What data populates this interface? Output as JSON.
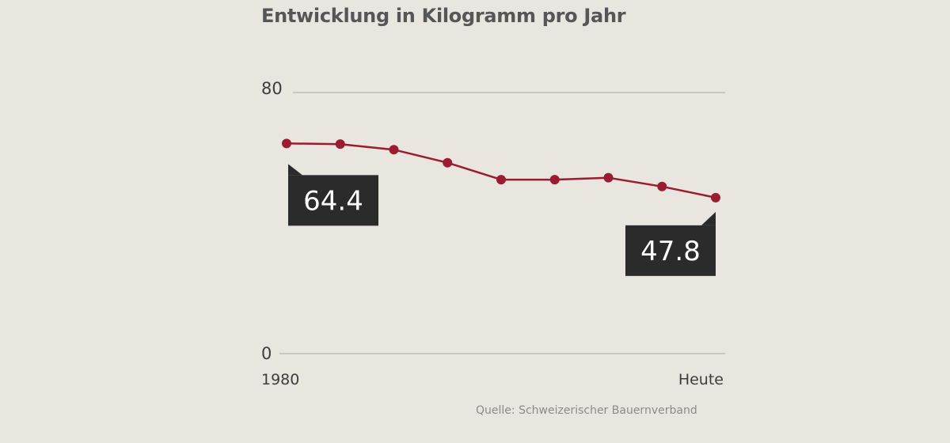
{
  "header": {
    "title": "Entwicklung in Kilogramm pro Jahr"
  },
  "footer": {
    "source": "Quelle: Schweizerischer Bauernverband"
  },
  "colors": {
    "background": "#e9e5df",
    "line": "#9b1b30",
    "grid": "#bfbbb5",
    "callout": "#2b2b2b"
  },
  "chart_data": {
    "type": "line",
    "title": "Entwicklung in Kilogramm pro Jahr",
    "xlabel": "",
    "ylabel": "",
    "ylim": [
      0,
      80
    ],
    "yticks": [
      "80",
      "0"
    ],
    "xtick_labels": [
      "1980",
      "Heute"
    ],
    "grid": true,
    "series": [
      {
        "name": "Kilogramm pro Jahr",
        "values": [
          64.4,
          64.2,
          62.5,
          58.5,
          53.3,
          53.3,
          53.9,
          51.2,
          47.8
        ]
      }
    ],
    "annotations": [
      {
        "label": "64.4",
        "point_index": 0
      },
      {
        "label": "47.8",
        "point_index": 8
      }
    ]
  }
}
